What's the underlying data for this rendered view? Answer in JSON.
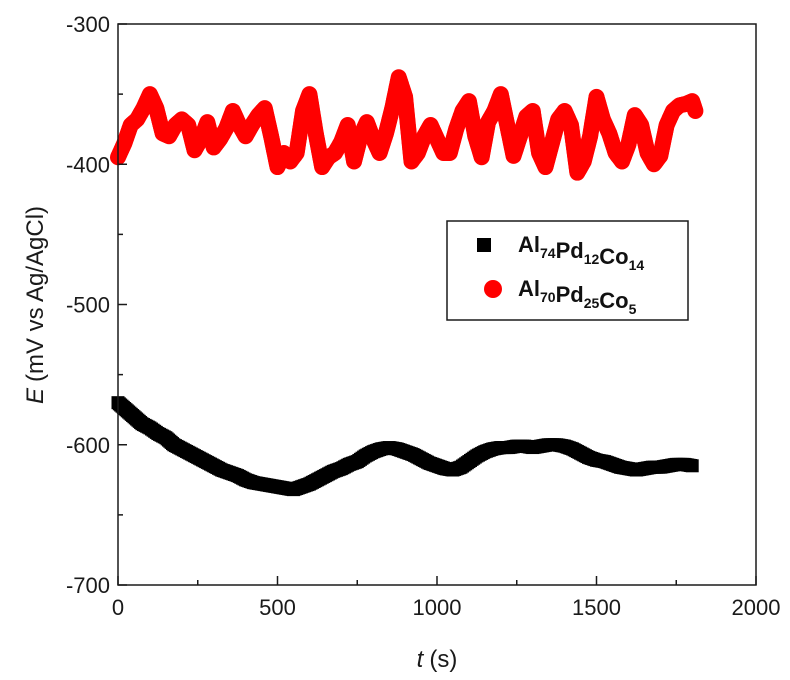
{
  "chart_data": {
    "type": "scatter",
    "title": "",
    "xlabel": {
      "symbol": "t",
      "unit": "(s)"
    },
    "ylabel": {
      "symbol": "E",
      "unit": "(mV vs Ag/AgCl)"
    },
    "xlim": [
      0,
      2000
    ],
    "ylim": [
      -700,
      -300
    ],
    "x_ticks": [
      0,
      500,
      1000,
      1500,
      2000
    ],
    "y_ticks": [
      -700,
      -600,
      -500,
      -400,
      -300
    ],
    "legend_position": "center-right",
    "grid": false,
    "series": [
      {
        "name": "Al74Pd12Co14",
        "legend_parts": [
          [
            "Al",
            "74"
          ],
          [
            "Pd",
            "12"
          ],
          [
            "Co",
            "14"
          ]
        ],
        "color": "#000000",
        "marker": "square",
        "x": [
          0,
          25,
          50,
          75,
          100,
          125,
          150,
          175,
          200,
          225,
          250,
          275,
          300,
          325,
          350,
          375,
          400,
          425,
          450,
          475,
          500,
          525,
          550,
          575,
          600,
          625,
          650,
          675,
          700,
          725,
          750,
          775,
          800,
          825,
          850,
          875,
          900,
          925,
          950,
          975,
          1000,
          1025,
          1050,
          1075,
          1100,
          1125,
          1150,
          1175,
          1200,
          1225,
          1250,
          1275,
          1300,
          1325,
          1350,
          1375,
          1400,
          1425,
          1450,
          1475,
          1500,
          1525,
          1550,
          1575,
          1600,
          1625,
          1650,
          1675,
          1700,
          1725,
          1750,
          1775,
          1800
        ],
        "y": [
          -570,
          -575,
          -580,
          -585,
          -588,
          -592,
          -595,
          -600,
          -603,
          -606,
          -609,
          -612,
          -615,
          -618,
          -620,
          -622,
          -625,
          -627,
          -628,
          -629,
          -630,
          -631,
          -632,
          -630,
          -628,
          -625,
          -622,
          -619,
          -617,
          -614,
          -612,
          -608,
          -605,
          -603,
          -602,
          -603,
          -605,
          -607,
          -610,
          -613,
          -615,
          -617,
          -618,
          -616,
          -612,
          -608,
          -605,
          -603,
          -602,
          -602,
          -601,
          -601,
          -602,
          -601,
          -600,
          -600,
          -601,
          -603,
          -606,
          -609,
          -611,
          -612,
          -614,
          -616,
          -617,
          -618,
          -617,
          -616,
          -616,
          -615,
          -614,
          -614,
          -615
        ]
      },
      {
        "name": "Al70Pd25Co5",
        "legend_parts": [
          [
            "Al",
            "70"
          ],
          [
            "Pd",
            "25"
          ],
          [
            "Co",
            "5"
          ]
        ],
        "color": "#ff0000",
        "marker": "circle",
        "x": [
          0,
          20,
          40,
          60,
          80,
          100,
          120,
          140,
          160,
          180,
          200,
          220,
          240,
          260,
          280,
          300,
          320,
          340,
          360,
          380,
          400,
          420,
          440,
          460,
          480,
          500,
          520,
          540,
          560,
          580,
          600,
          620,
          640,
          660,
          680,
          700,
          720,
          740,
          760,
          780,
          800,
          820,
          840,
          860,
          880,
          900,
          920,
          940,
          960,
          980,
          1000,
          1020,
          1040,
          1060,
          1080,
          1100,
          1120,
          1140,
          1160,
          1180,
          1200,
          1220,
          1240,
          1260,
          1280,
          1300,
          1320,
          1340,
          1360,
          1380,
          1400,
          1420,
          1440,
          1460,
          1480,
          1500,
          1520,
          1540,
          1560,
          1580,
          1600,
          1620,
          1640,
          1660,
          1680,
          1700,
          1720,
          1740,
          1760,
          1780,
          1800,
          1810
        ],
        "y": [
          -395,
          -385,
          -372,
          -368,
          -360,
          -350,
          -360,
          -378,
          -380,
          -372,
          -368,
          -372,
          -390,
          -382,
          -370,
          -388,
          -382,
          -374,
          -362,
          -372,
          -380,
          -372,
          -365,
          -360,
          -380,
          -402,
          -392,
          -398,
          -392,
          -362,
          -350,
          -378,
          -402,
          -395,
          -392,
          -384,
          -372,
          -398,
          -380,
          -370,
          -382,
          -392,
          -378,
          -360,
          -338,
          -352,
          -398,
          -392,
          -380,
          -372,
          -382,
          -392,
          -392,
          -375,
          -362,
          -355,
          -380,
          -395,
          -370,
          -362,
          -350,
          -372,
          -394,
          -380,
          -366,
          -362,
          -392,
          -402,
          -385,
          -368,
          -362,
          -372,
          -406,
          -398,
          -380,
          -352,
          -368,
          -378,
          -392,
          -398,
          -386,
          -365,
          -372,
          -392,
          -400,
          -394,
          -372,
          -362,
          -358,
          -357,
          -355,
          -362
        ]
      }
    ]
  }
}
